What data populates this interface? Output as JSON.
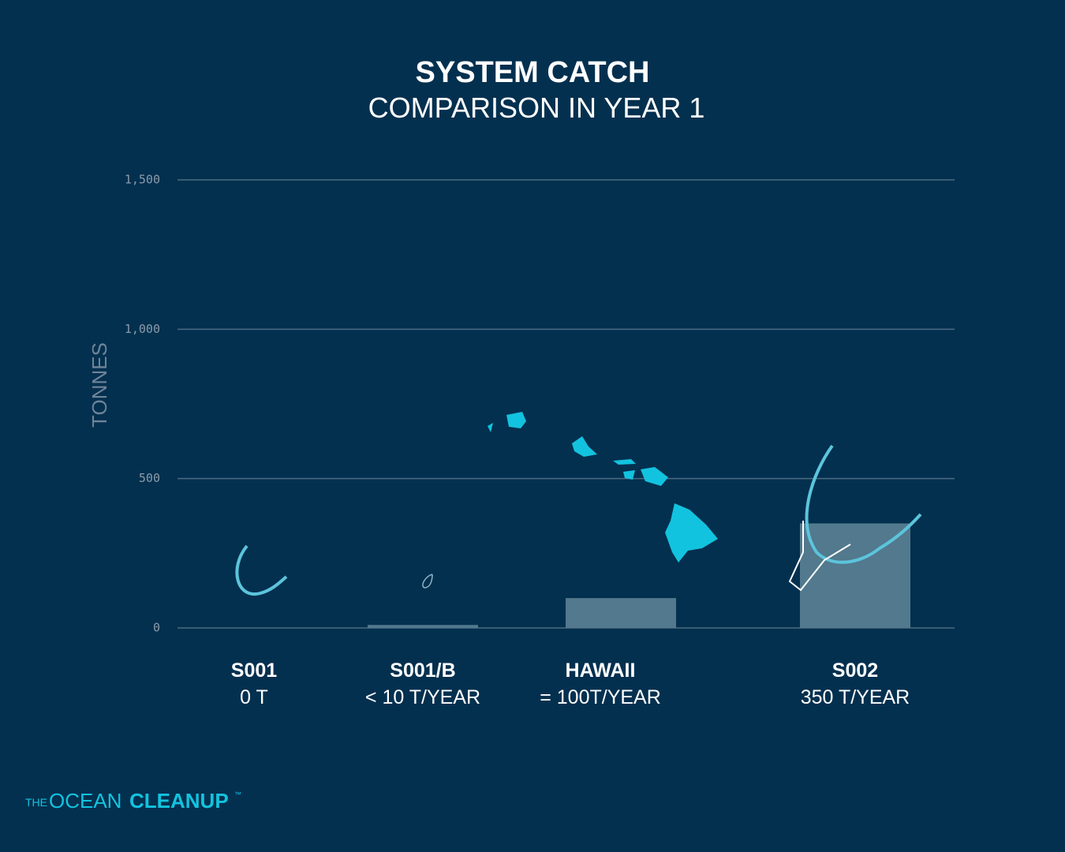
{
  "chart_data": {
    "type": "bar",
    "title": "SYSTEM CATCH",
    "subtitle": "COMPARISON IN YEAR 1",
    "y_label": "TONNES",
    "categories": [
      "S001",
      "S001/B",
      "HAWAII",
      "S002"
    ],
    "values": [
      0,
      10,
      100,
      350
    ],
    "value_labels": [
      "0 T",
      "< 10 T/YEAR",
      "= 100T/YEAR",
      "350 T/YEAR"
    ],
    "color": "#52798d",
    "ylim": [
      0,
      1500
    ],
    "yticks": [
      0,
      500,
      {
        "value": 1000,
        "label": "1,000"
      },
      {
        "value": 1500,
        "label": "1,500"
      }
    ],
    "grid": true
  },
  "footer": {
    "brand_prefix": "THE",
    "brand_light": "OCEAN",
    "brand_bold": "CLEANUP",
    "trademark": "™"
  }
}
